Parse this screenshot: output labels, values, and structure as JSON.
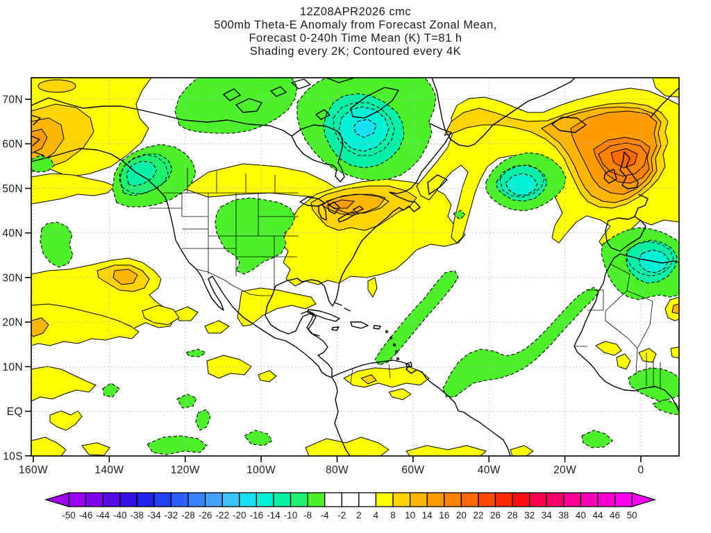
{
  "header": {
    "line1": "12Z08APR2026 cmc",
    "line2": "500mb Theta-E Anomaly from Forecast Zonal Mean,",
    "line3": "Forecast 0-240h Time Mean (K) T=81 h",
    "line4": "Shading every 2K; Contoured every 4K"
  },
  "axes": {
    "y_tick_labels": [
      "70N",
      "60N",
      "50N",
      "40N",
      "30N",
      "20N",
      "10N",
      "EQ",
      "10S"
    ],
    "x_tick_labels": [
      "160W",
      "140W",
      "120W",
      "100W",
      "80W",
      "60W",
      "40W",
      "20W",
      "0"
    ]
  },
  "colorbar": {
    "boundary_labels": [
      "-50",
      "-46",
      "-44",
      "-40",
      "-38",
      "-34",
      "-32",
      "-28",
      "-26",
      "-22",
      "-20",
      "-16",
      "-14",
      "-10",
      "-8",
      "-4",
      "-2",
      "2",
      "4",
      "8",
      "10",
      "14",
      "16",
      "20",
      "22",
      "26",
      "28",
      "32",
      "34",
      "38",
      "40",
      "44",
      "46",
      "50"
    ],
    "segment_colors": [
      "#9A00F0",
      "#7F04EC",
      "#5707E6",
      "#3311E2",
      "#1F22EA",
      "#2340F2",
      "#2B61FA",
      "#3783FF",
      "#45A3FF",
      "#3FC3FA",
      "#17E3F0",
      "#00F1D5",
      "#05F0A6",
      "#1EF172",
      "#4CF12B",
      "#FFFFFF",
      "#FFFFFF",
      "#FFFFFF",
      "#FFFF00",
      "#FFD400",
      "#FFB600",
      "#FF9C00",
      "#FF8200",
      "#FF6700",
      "#FF4900",
      "#FF2A00",
      "#FB0D10",
      "#F70048",
      "#F7006E",
      "#F70092",
      "#F700B6",
      "#F700D4",
      "#F700EB"
    ],
    "left_arrow_color": "#A400F5",
    "right_arrow_color": "#FA00F0"
  },
  "chart_data": {
    "type": "heatmap",
    "subtype": "filled-contour-weather-map",
    "title_lines": [
      "12Z08APR2026 cmc",
      "500mb Theta-E Anomaly from Forecast Zonal Mean,",
      "Forecast 0-240h Time Mean (K) T=81 h",
      "Shading every 2K; Contoured every 4K"
    ],
    "model": "cmc",
    "valid": "12Z08APR2026",
    "units": "K",
    "shading_interval_K": 2,
    "contour_interval_K": 4,
    "x_axis": {
      "label": "longitude",
      "ticks": [
        "160W",
        "140W",
        "120W",
        "100W",
        "80W",
        "60W",
        "40W",
        "20W",
        "0"
      ],
      "range": [
        "160W",
        "10E"
      ]
    },
    "y_axis": {
      "label": "latitude",
      "ticks": [
        "70N",
        "60N",
        "50N",
        "40N",
        "30N",
        "20N",
        "10N",
        "EQ",
        "10S"
      ],
      "range": [
        "10S",
        "75N"
      ]
    },
    "grid": "dotted graticule every 10 deg lat / 20 deg lon",
    "legend_position": "bottom colorbar with end arrows",
    "colorbar_boundaries_K": [
      -50,
      -46,
      -44,
      -40,
      -38,
      -34,
      -32,
      -28,
      -26,
      -22,
      -20,
      -16,
      -14,
      -10,
      -8,
      -4,
      -2,
      2,
      4,
      8,
      10,
      14,
      16,
      20,
      22,
      26,
      28,
      32,
      34,
      38,
      40,
      44,
      46,
      50
    ],
    "anomaly_features": [
      {
        "region": "Gulf of Alaska / Aleutians ~58N 152W",
        "sign": "positive",
        "peak_K": "+10 to +14"
      },
      {
        "region": "British Columbia coast ~55N 128W",
        "sign": "negative",
        "peak_K": "-10 to -12"
      },
      {
        "region": "Canadian Arctic archipelago ~70N 110W",
        "sign": "negative",
        "peak_K": "-4 to -8"
      },
      {
        "region": "Hudson Bay / Quebec / Baffin ~60N 75W",
        "sign": "negative",
        "peak_K": "-12 to -14"
      },
      {
        "region": "Southern Canada prairie band ~52N",
        "sign": "positive",
        "peak_K": "+4 to +6"
      },
      {
        "region": "Great Lakes / Northeast USA ~45N 75W",
        "sign": "positive",
        "peak_K": "+12 to +16"
      },
      {
        "region": "Four Corners / SW USA ~35N 105W",
        "sign": "negative",
        "peak_K": "-4 to -8"
      },
      {
        "region": "Subtropical NE Pacific ~28N 132W",
        "sign": "positive",
        "peak_K": "+8 to +12"
      },
      {
        "region": "NE Pacific ~35N 152W",
        "sign": "negative",
        "peak_K": "-4"
      },
      {
        "region": "North Atlantic arc Greenland to British Isles, peak near Scotland",
        "sign": "positive",
        "peak_K": "+16 to +20"
      },
      {
        "region": "Central North Atlantic ~48N 38W",
        "sign": "negative",
        "peak_K": "-10 to -12"
      },
      {
        "region": "Western Atlantic band ~25N 65W",
        "sign": "negative",
        "peak_K": "-4"
      },
      {
        "region": "Tropical Atlantic ~10N 25W",
        "sign": "negative",
        "peak_K": "-4 to -6"
      },
      {
        "region": "NW Africa / Algeria ~32N 3W",
        "sign": "negative",
        "peak_K": "-8 to -10"
      },
      {
        "region": "Tropical belt scattered patches (E Pacific, Caribbean, Sahel, S Hemisphere edge)",
        "sign": "positive",
        "peak_K": "+4 to +6"
      }
    ]
  }
}
